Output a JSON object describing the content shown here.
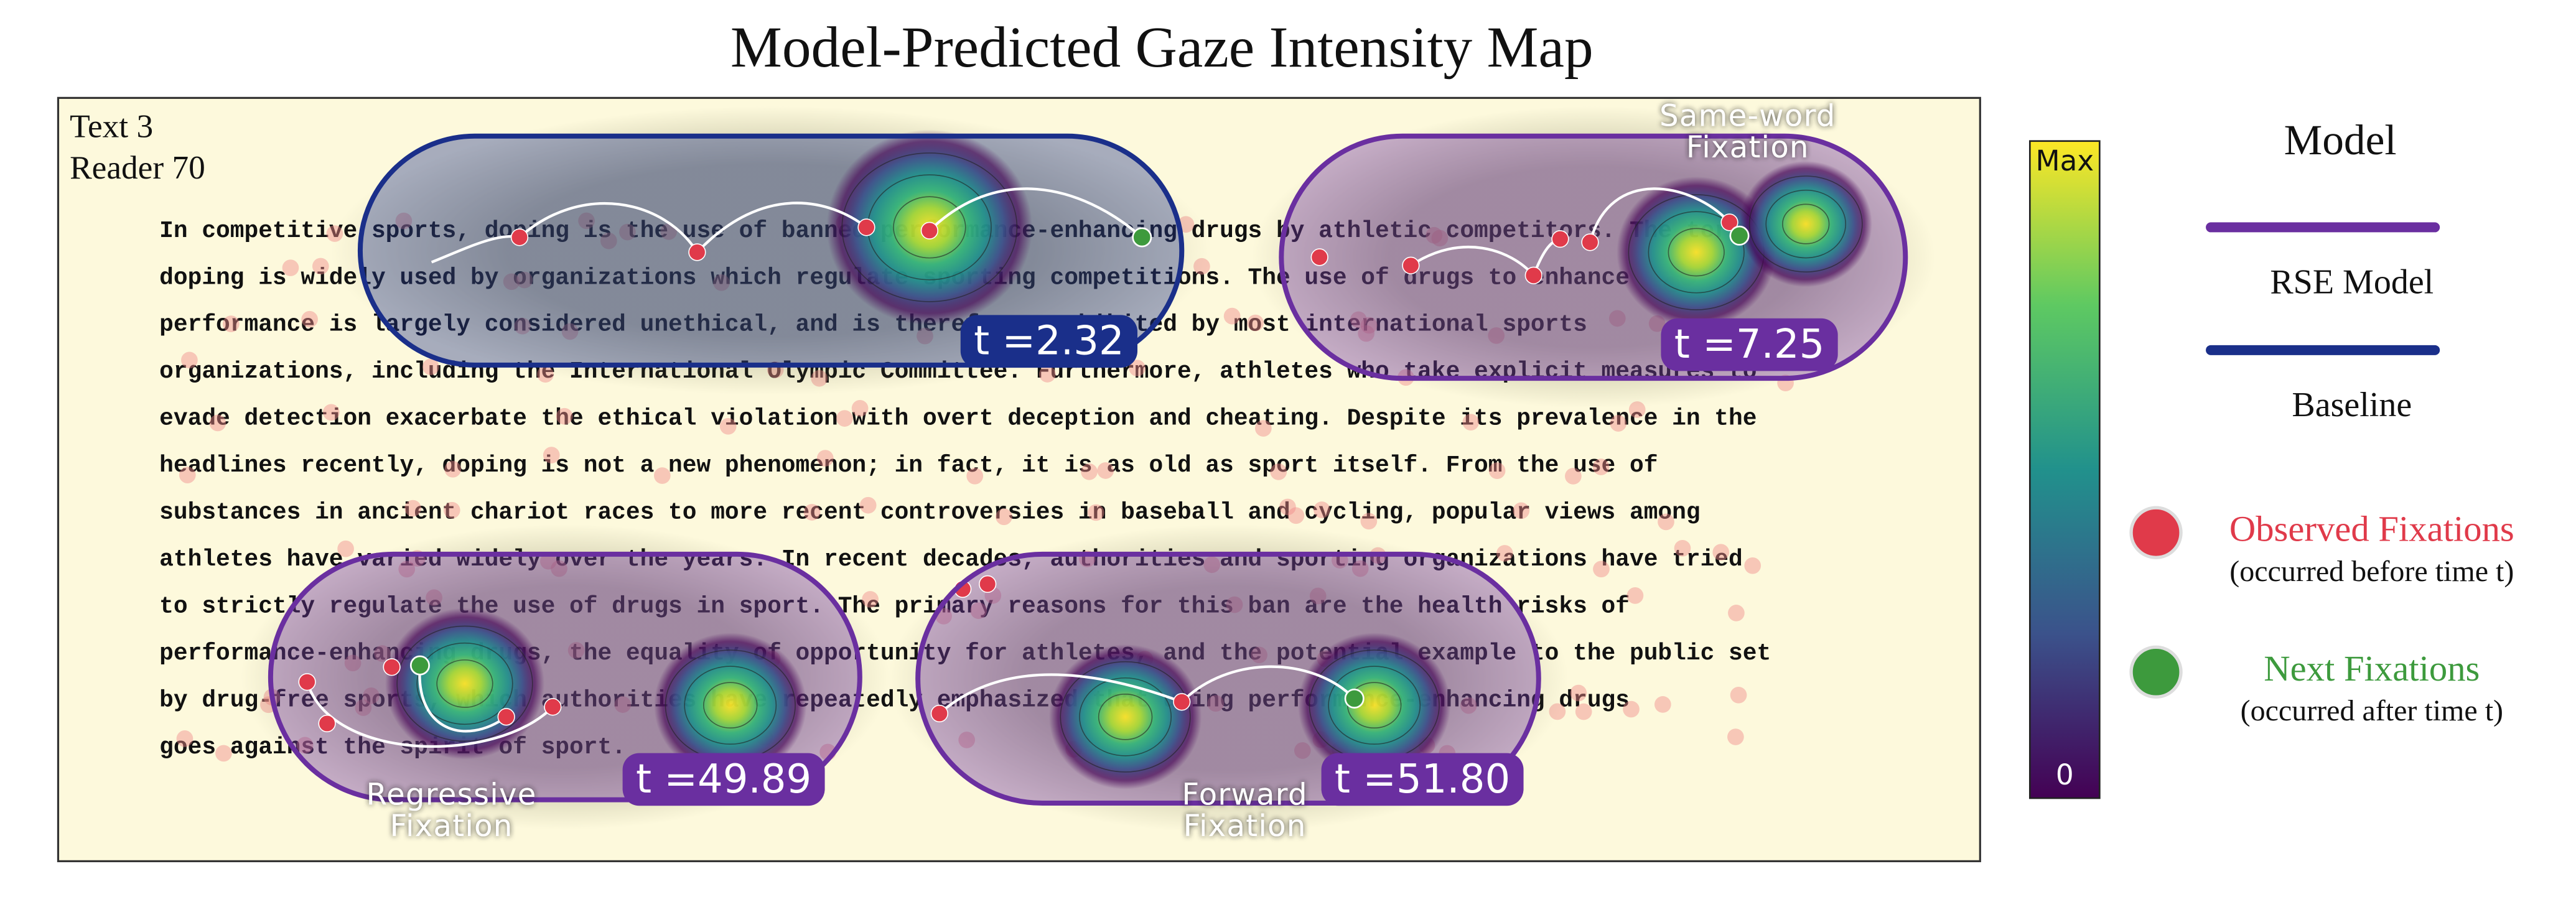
{
  "figure": {
    "title": "Model-Predicted Gaze Intensity Map",
    "panel": {
      "text_id": "Text 3",
      "reader": "Reader 70",
      "passage": [
        "In competitive sports, doping is the use of banned performance-enhancing drugs by athletic competitors. The term",
        "doping is widely used by organizations which regulate sporting competitions. The use of drugs to enhance",
        "performance is largely considered unethical, and is therefore prohibited by most international sports",
        "organizations, including the International Olympic Committee. Furthermore, athletes who take explicit measures to",
        "evade detection exacerbate the ethical violation with overt deception and cheating. Despite its prevalence in the",
        "headlines recently, doping is not a new phenomenon; in fact, it is as old as sport itself. From the use of",
        "substances in ancient chariot races to more recent controversies in baseball and cycling, popular views among",
        "athletes have varied widely over the years. In recent decades, authorities and sporting organizations have tried",
        "to strictly regulate the use of drugs in sport. The primary reasons for this ban are the health risks of",
        "performance-enhancing drugs, the equality of opportunity for athletes, and the potential example to the public set",
        "by drug-free sports, which authorities have repeatedly emphasized that using performance-enhancing drugs",
        "goes against the spirit of sport."
      ]
    },
    "bubbles": [
      {
        "time_label": "t =2.32",
        "border_color": "#1a2f8a"
      },
      {
        "time_label": "t =7.25",
        "border_color": "#6a2fa0"
      },
      {
        "time_label": "t =49.89",
        "border_color": "#6a2fa0"
      },
      {
        "time_label": "t =51.80",
        "border_color": "#6a2fa0"
      }
    ],
    "annotations": [
      {
        "lines": [
          "Same-word",
          "Fixation"
        ]
      },
      {
        "lines": [
          "Regressive",
          "Fixation"
        ]
      },
      {
        "lines": [
          "Forward",
          "Fixation"
        ]
      }
    ],
    "colorbar": {
      "top_label": "Max",
      "bottom_label": "0"
    },
    "legend": {
      "model_title": "Model",
      "models": [
        {
          "name": "RSE Model",
          "color": "#6a2fa0"
        },
        {
          "name": "Baseline",
          "color": "#1a2f8a"
        }
      ],
      "fixations": [
        {
          "name": "Observed Fixations",
          "note": "(occurred before time t)",
          "color": "#e03a4a"
        },
        {
          "name": "Next Fixations",
          "note": "(occurred after time t)",
          "color": "#3d9a3d"
        }
      ]
    }
  }
}
